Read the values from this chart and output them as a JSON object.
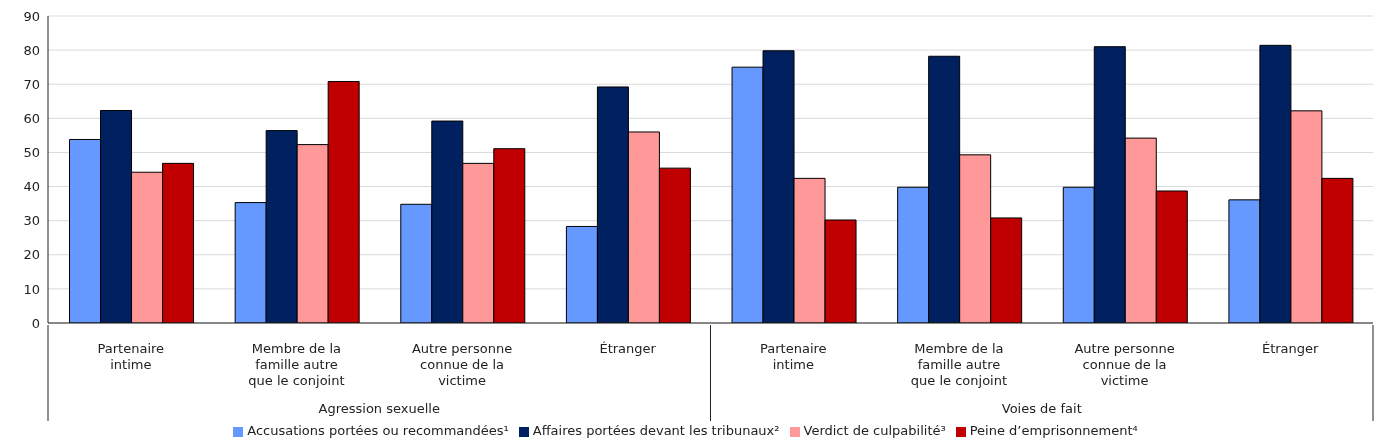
{
  "chart_data": {
    "type": "bar",
    "categories": [
      "Partenaire intime",
      "Membre de la famille autre que le conjoint",
      "Autre personne connue de la victime",
      "Étranger",
      "Partenaire intime",
      "Membre de la famille autre que le conjoint",
      "Autre personne connue de la victime",
      "Étranger"
    ],
    "annotations": [
      "Agression sexuelle",
      "Voies de fait"
    ],
    "series": [
      {
        "name": "Accusations portées ou recommandées¹",
        "color": "#6699ff",
        "values": [
          53.8,
          35.3,
          34.8,
          28.3,
          75,
          39.8,
          39.8,
          36.1
        ]
      },
      {
        "name": "Affaires portées devant les tribunaux²",
        "color": "#002060",
        "values": [
          62.3,
          56.4,
          59.2,
          69.2,
          79.8,
          78.2,
          81,
          81.4
        ]
      },
      {
        "name": "Verdict de culpabilité³",
        "color": "#ff9999",
        "values": [
          44.2,
          52.3,
          46.8,
          56,
          42.4,
          49.3,
          54.2,
          62.2
        ]
      },
      {
        "name": "Peine d’emprisonnement⁴",
        "color": "#c00000",
        "values": [
          46.8,
          70.8,
          51.1,
          45.4,
          30.2,
          30.8,
          38.7,
          42.4
        ]
      }
    ],
    "ylim": [
      0,
      90
    ],
    "yticks": [
      0,
      10,
      20,
      30,
      40,
      50,
      60,
      70,
      80,
      90
    ],
    "grid": "y",
    "legend": "bottom"
  }
}
